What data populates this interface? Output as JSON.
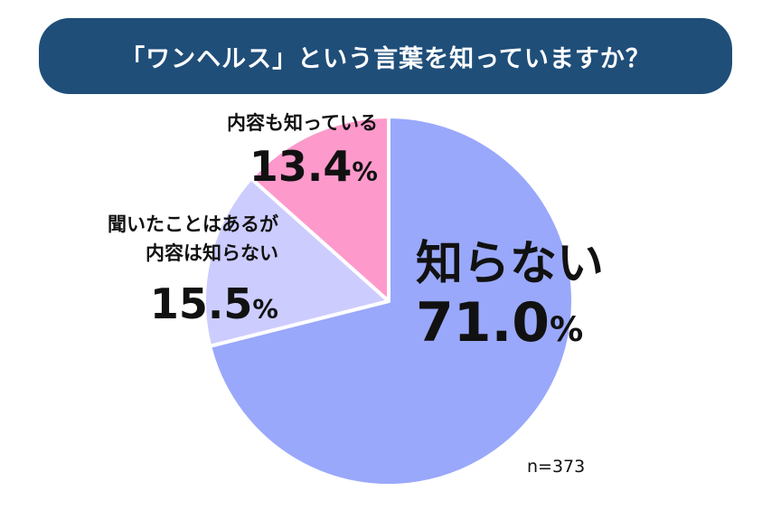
{
  "title": "「ワンヘルス」という言葉を知っていますか？",
  "chart_data": {
    "type": "pie",
    "title": "「ワンヘルス」という言葉を知っていますか？",
    "slices": [
      {
        "label": "知らない",
        "value": 71.0,
        "display": "71.0",
        "color": "#99a8fa"
      },
      {
        "label": "聞いたことはあるが内容は知らない",
        "label_lines": [
          "聞いたことはあるが",
          "内容は知らない"
        ],
        "value": 15.5,
        "display": "15.5",
        "color": "#ccccff"
      },
      {
        "label": "内容も知っている",
        "value": 13.4,
        "display": "13.4",
        "color": "#fe99cc"
      }
    ],
    "unit": "%",
    "start": "12 o'clock",
    "direction": "clockwise",
    "legend": "none",
    "sample_size": "n=373"
  }
}
